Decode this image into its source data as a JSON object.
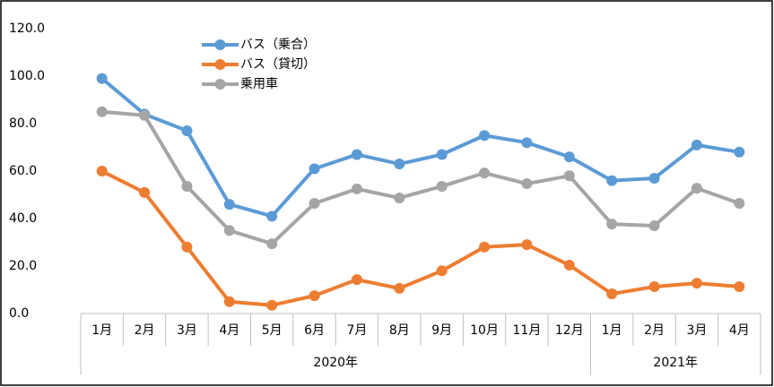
{
  "chart_data": {
    "type": "line",
    "category_groups": [
      {
        "name": "2020年",
        "categories": [
          "1月",
          "2月",
          "3月",
          "4月",
          "5月",
          "6月",
          "7月",
          "8月",
          "9月",
          "10月",
          "11月",
          "12月"
        ]
      },
      {
        "name": "2021年",
        "categories": [
          "1月",
          "2月",
          "3月",
          "4月"
        ]
      }
    ],
    "series": [
      {
        "name": "バス（乗合）",
        "color": "#5b9bd5",
        "values": [
          99,
          84,
          77,
          46,
          41,
          61,
          67,
          63,
          67,
          75,
          72,
          66,
          56,
          57,
          71,
          68
        ]
      },
      {
        "name": "バス（貸切）",
        "color": "#ed7d31",
        "values": [
          60,
          51,
          28,
          5,
          3.5,
          7.5,
          14.3,
          10.6,
          18,
          28,
          29,
          20.4,
          8.3,
          11.3,
          12.8,
          11.3
        ]
      },
      {
        "name": "乗用車",
        "color": "#a5a5a5",
        "values": [
          85,
          83.5,
          53.6,
          35,
          29.4,
          46.4,
          52.5,
          48.7,
          53.6,
          59.2,
          54.7,
          58,
          37.7,
          37,
          52.8,
          46.4
        ]
      }
    ],
    "ylim": [
      0,
      120
    ],
    "yticks": [
      {
        "value": 0,
        "label": "0.0"
      },
      {
        "value": 20,
        "label": "20.0"
      },
      {
        "value": 40,
        "label": "40.0"
      },
      {
        "value": 60,
        "label": "60.0"
      },
      {
        "value": 80,
        "label": "80.0"
      },
      {
        "value": 100,
        "label": "100.0"
      },
      {
        "value": 120,
        "label": "120.0"
      }
    ],
    "grid": false
  }
}
